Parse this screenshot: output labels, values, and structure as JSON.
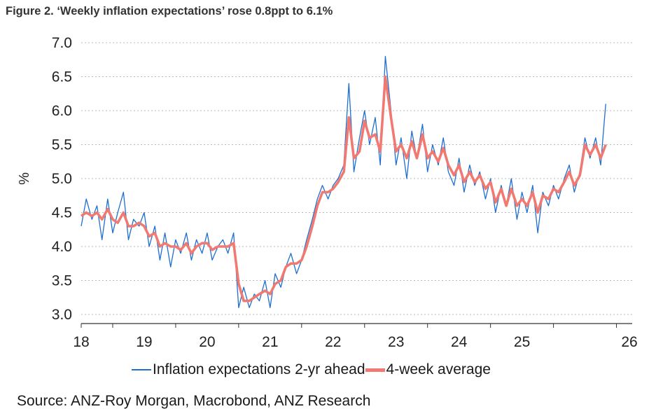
{
  "figure": {
    "title": "Figure 2. ‘Weekly inflation expectations’ rose 0.8ppt to 6.1%",
    "source": "Source: ANZ-Roy Morgan, Macrobond, ANZ Research"
  },
  "chart_data": {
    "type": "line",
    "title": "Figure 2. ‘Weekly inflation expectations’ rose 0.8ppt to 6.1%",
    "xlabel": "",
    "ylabel": "%",
    "xlim": [
      2017.5,
      2026.25
    ],
    "ylim": [
      3.0,
      7.0
    ],
    "yticks": [
      "3.0",
      "3.5",
      "4.0",
      "4.5",
      "5.0",
      "5.5",
      "6.0",
      "6.5",
      "7.0"
    ],
    "xticks": [
      "18",
      "19",
      "20",
      "21",
      "22",
      "23",
      "24",
      "25",
      "26"
    ],
    "grid": "horizontal dotted",
    "legend_position": "bottom",
    "colors": {
      "weekly": "#1f6fd0",
      "average": "#f07a72"
    },
    "series": [
      {
        "name": "Inflation expectations 2-yr ahead",
        "x": [
          2017.5,
          2017.58,
          2017.67,
          2017.75,
          2017.83,
          2017.92,
          2018.0,
          2018.08,
          2018.17,
          2018.25,
          2018.33,
          2018.42,
          2018.5,
          2018.58,
          2018.67,
          2018.75,
          2018.83,
          2018.92,
          2019.0,
          2019.08,
          2019.17,
          2019.25,
          2019.33,
          2019.42,
          2019.5,
          2019.58,
          2019.67,
          2019.75,
          2019.83,
          2019.92,
          2020.0,
          2020.08,
          2020.17,
          2020.25,
          2020.33,
          2020.42,
          2020.5,
          2020.58,
          2020.67,
          2020.75,
          2020.83,
          2020.92,
          2021.0,
          2021.08,
          2021.17,
          2021.25,
          2021.33,
          2021.42,
          2021.5,
          2021.58,
          2021.67,
          2021.75,
          2021.83,
          2021.92,
          2022.0,
          2022.08,
          2022.17,
          2022.25,
          2022.33,
          2022.42,
          2022.5,
          2022.58,
          2022.67,
          2022.75,
          2022.83,
          2022.92,
          2023.0,
          2023.08,
          2023.17,
          2023.25,
          2023.33,
          2023.42,
          2023.5,
          2023.58,
          2023.67,
          2023.75,
          2023.83,
          2023.92,
          2024.0,
          2024.08,
          2024.17,
          2024.25,
          2024.33,
          2024.42,
          2024.5,
          2024.58,
          2024.67,
          2024.75,
          2024.83,
          2024.92,
          2025.0,
          2025.08,
          2025.17,
          2025.25,
          2025.33,
          2025.42,
          2025.5,
          2025.58,
          2025.67,
          2025.75,
          2025.83
        ],
        "y": [
          4.3,
          4.7,
          4.4,
          4.6,
          4.1,
          4.7,
          4.2,
          4.5,
          4.8,
          4.1,
          4.4,
          4.3,
          4.5,
          4.0,
          4.3,
          3.8,
          4.2,
          3.7,
          4.1,
          3.9,
          4.2,
          3.8,
          4.1,
          3.9,
          4.2,
          3.8,
          4.0,
          4.1,
          3.9,
          4.2,
          3.1,
          3.4,
          3.1,
          3.3,
          3.2,
          3.5,
          3.1,
          3.6,
          3.4,
          3.7,
          3.9,
          3.6,
          3.8,
          4.1,
          4.4,
          4.7,
          4.9,
          4.7,
          4.9,
          5.0,
          5.2,
          6.4,
          5.1,
          5.6,
          6.0,
          5.5,
          5.9,
          5.2,
          6.8,
          6.0,
          5.2,
          5.6,
          5.0,
          5.7,
          5.3,
          5.8,
          5.1,
          5.5,
          5.2,
          5.6,
          5.1,
          4.9,
          5.3,
          4.8,
          5.2,
          4.9,
          5.1,
          4.7,
          5.0,
          4.5,
          4.9,
          4.6,
          5.0,
          4.4,
          4.8,
          4.5,
          4.9,
          4.2,
          4.8,
          4.6,
          4.9,
          4.7,
          5.0,
          5.2,
          4.8,
          5.1,
          5.6,
          5.3,
          5.6,
          5.2,
          6.1
        ]
      },
      {
        "name": "4-week average",
        "x": [
          2017.5,
          2017.58,
          2017.67,
          2017.75,
          2017.83,
          2017.92,
          2018.0,
          2018.08,
          2018.17,
          2018.25,
          2018.33,
          2018.42,
          2018.5,
          2018.58,
          2018.67,
          2018.75,
          2018.83,
          2018.92,
          2019.0,
          2019.08,
          2019.17,
          2019.25,
          2019.33,
          2019.42,
          2019.5,
          2019.58,
          2019.67,
          2019.75,
          2019.83,
          2019.92,
          2020.0,
          2020.08,
          2020.17,
          2020.25,
          2020.33,
          2020.42,
          2020.5,
          2020.58,
          2020.67,
          2020.75,
          2020.83,
          2020.92,
          2021.0,
          2021.08,
          2021.17,
          2021.25,
          2021.33,
          2021.42,
          2021.5,
          2021.58,
          2021.67,
          2021.75,
          2021.83,
          2021.92,
          2022.0,
          2022.08,
          2022.17,
          2022.25,
          2022.33,
          2022.42,
          2022.5,
          2022.58,
          2022.67,
          2022.75,
          2022.83,
          2022.92,
          2023.0,
          2023.08,
          2023.17,
          2023.25,
          2023.33,
          2023.42,
          2023.5,
          2023.58,
          2023.67,
          2023.75,
          2023.83,
          2023.92,
          2024.0,
          2024.08,
          2024.17,
          2024.25,
          2024.33,
          2024.42,
          2024.5,
          2024.58,
          2024.67,
          2024.75,
          2024.83,
          2024.92,
          2025.0,
          2025.08,
          2025.17,
          2025.25,
          2025.33,
          2025.42,
          2025.5,
          2025.58,
          2025.67,
          2025.75,
          2025.83
        ],
        "y": [
          4.45,
          4.5,
          4.45,
          4.5,
          4.4,
          4.55,
          4.4,
          4.35,
          4.5,
          4.3,
          4.3,
          4.35,
          4.3,
          4.15,
          4.2,
          4.0,
          4.05,
          4.0,
          4.0,
          3.95,
          4.05,
          3.9,
          4.0,
          4.05,
          4.05,
          3.95,
          4.0,
          4.0,
          4.0,
          4.05,
          3.45,
          3.2,
          3.2,
          3.25,
          3.3,
          3.35,
          3.3,
          3.45,
          3.5,
          3.7,
          3.75,
          3.75,
          3.8,
          4.0,
          4.3,
          4.6,
          4.8,
          4.8,
          4.85,
          4.95,
          5.1,
          5.9,
          5.3,
          5.4,
          5.85,
          5.6,
          5.65,
          5.4,
          6.5,
          5.9,
          5.4,
          5.5,
          5.3,
          5.55,
          5.3,
          5.65,
          5.3,
          5.4,
          5.25,
          5.45,
          5.2,
          5.05,
          5.2,
          4.95,
          5.1,
          4.95,
          5.05,
          4.85,
          4.95,
          4.65,
          4.85,
          4.6,
          4.85,
          4.6,
          4.7,
          4.6,
          4.8,
          4.5,
          4.75,
          4.7,
          4.85,
          4.8,
          4.95,
          5.1,
          4.9,
          5.05,
          5.5,
          5.35,
          5.5,
          5.3,
          5.5
        ]
      }
    ]
  }
}
